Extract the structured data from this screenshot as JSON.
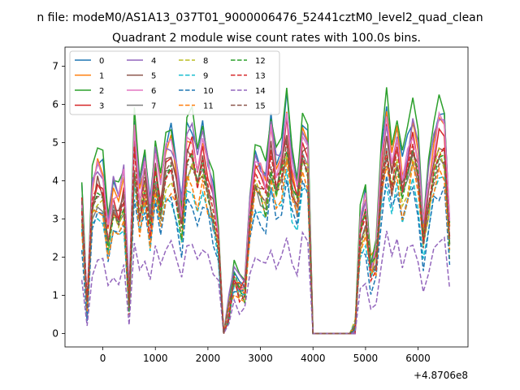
{
  "chart_data": {
    "type": "line",
    "suptitle": "n file: modeM0/AS1A13_037T01_9000006476_52441cztM0_level2_quad_clean",
    "title": "Quadrant 2 module wise count rates with 100.0s bins.",
    "xlabel": "",
    "ylabel": "",
    "offset_label": "+4.8706e8",
    "xlim": [
      -720,
      6950
    ],
    "ylim": [
      -0.35,
      7.5
    ],
    "xticks": [
      0,
      1000,
      2000,
      3000,
      4000,
      5000,
      6000
    ],
    "xtick_labels": [
      "0",
      "1000",
      "2000",
      "3000",
      "4000",
      "5000",
      "6000"
    ],
    "yticks": [
      0,
      1,
      2,
      3,
      4,
      5,
      6,
      7
    ],
    "ytick_labels": [
      "0",
      "1",
      "2",
      "3",
      "4",
      "5",
      "6",
      "7"
    ],
    "legend_position": "top-left",
    "legend_columns": 4,
    "x": [
      -400,
      -300,
      -200,
      -100,
      0,
      100,
      200,
      300,
      400,
      500,
      600,
      700,
      800,
      900,
      1000,
      1100,
      1200,
      1300,
      1400,
      1500,
      1600,
      1700,
      1800,
      1900,
      2000,
      2100,
      2200,
      2300,
      2400,
      2500,
      2600,
      2700,
      2800,
      2900,
      3000,
      3100,
      3200,
      3300,
      3400,
      3500,
      3600,
      3700,
      3800,
      3900,
      4000,
      4100,
      4200,
      4300,
      4400,
      4500,
      4600,
      4700,
      4800,
      4900,
      5000,
      5100,
      5200,
      5300,
      5400,
      5500,
      5600,
      5700,
      5800,
      5900,
      6000,
      6100,
      6200,
      6300,
      6400,
      6500,
      6600
    ],
    "series": [
      {
        "name": "0",
        "color": "#1f77b4",
        "dash": "solid",
        "scale": 0.95,
        "noise": 0.3
      },
      {
        "name": "1",
        "color": "#ff7f0e",
        "dash": "solid",
        "scale": 0.9,
        "noise": 0.3
      },
      {
        "name": "2",
        "color": "#2ca02c",
        "dash": "solid",
        "scale": 1.0,
        "noise": 0.25
      },
      {
        "name": "3",
        "color": "#d62728",
        "dash": "solid",
        "scale": 0.85,
        "noise": 0.25
      },
      {
        "name": "4",
        "color": "#9467bd",
        "dash": "solid",
        "scale": 0.92,
        "noise": 0.3
      },
      {
        "name": "5",
        "color": "#8c564b",
        "dash": "solid",
        "scale": 0.82,
        "noise": 0.3
      },
      {
        "name": "6",
        "color": "#e377c2",
        "dash": "solid",
        "scale": 0.9,
        "noise": 0.3
      },
      {
        "name": "7",
        "color": "#7f7f7f",
        "dash": "solid",
        "scale": 0.75,
        "noise": 0.3
      },
      {
        "name": "8",
        "color": "#bcbd22",
        "dash": "dashed",
        "scale": 0.75,
        "noise": 0.3
      },
      {
        "name": "9",
        "color": "#17becf",
        "dash": "dashed",
        "scale": 0.65,
        "noise": 0.25
      },
      {
        "name": "10",
        "color": "#1f77b4",
        "dash": "dashed",
        "scale": 0.62,
        "noise": 0.3
      },
      {
        "name": "11",
        "color": "#ff7f0e",
        "dash": "dashed",
        "scale": 0.7,
        "noise": 0.3
      },
      {
        "name": "12",
        "color": "#2ca02c",
        "dash": "dashed",
        "scale": 0.78,
        "noise": 0.3
      },
      {
        "name": "13",
        "color": "#d62728",
        "dash": "dashed",
        "scale": 0.8,
        "noise": 0.3
      },
      {
        "name": "14",
        "color": "#9467bd",
        "dash": "dashed",
        "scale": 0.4,
        "noise": 0.25
      },
      {
        "name": "15",
        "color": "#8c564b",
        "dash": "dashed",
        "scale": 0.77,
        "noise": 0.3
      }
    ],
    "base_profile": [
      4.0,
      0.8,
      4.2,
      4.8,
      4.6,
      3.0,
      4.2,
      3.8,
      4.5,
      1.0,
      5.8,
      4.0,
      5.0,
      3.5,
      5.2,
      4.2,
      5.3,
      5.5,
      4.6,
      3.5,
      5.6,
      5.8,
      5.0,
      5.6,
      4.8,
      4.0,
      3.0,
      0.0,
      0.8,
      1.8,
      1.4,
      1.4,
      3.8,
      5.0,
      4.8,
      4.3,
      5.8,
      4.8,
      5.2,
      6.5,
      4.8,
      4.2,
      6.0,
      5.6,
      0.0,
      0.0,
      0.0,
      0.0,
      0.0,
      0.0,
      0.0,
      0.0,
      0.1,
      3.2,
      3.8,
      2.0,
      2.4,
      5.0,
      6.2,
      5.0,
      5.8,
      4.6,
      5.2,
      6.0,
      5.2,
      3.0,
      4.4,
      5.4,
      6.1,
      6.0,
      3.0
    ]
  }
}
